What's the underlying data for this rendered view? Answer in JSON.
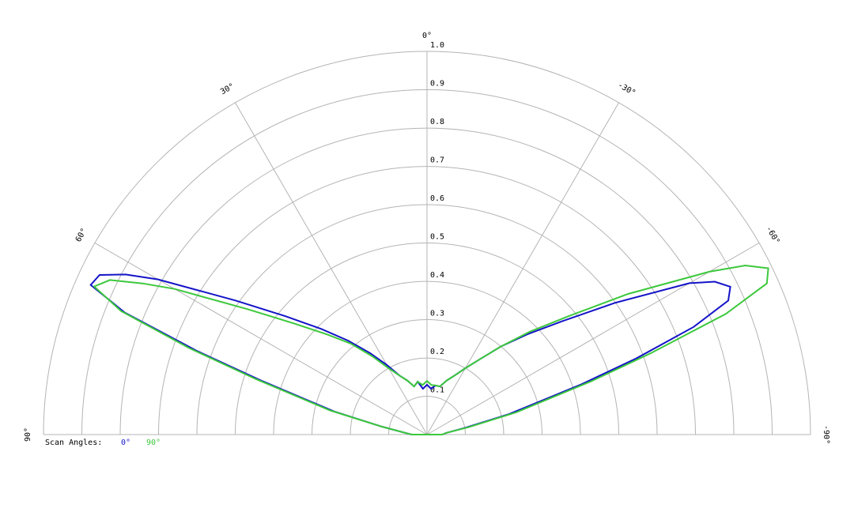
{
  "chart_data": {
    "type": "polar",
    "legend_title": "Scan Angles:",
    "x": [
      -90,
      -85,
      -80,
      -76,
      -72,
      -70,
      -68,
      -66,
      -64,
      -62,
      -60,
      -55,
      -50,
      -45,
      -40,
      -35,
      -30,
      -25,
      -20,
      -15,
      -10,
      -5,
      0,
      5,
      10,
      15,
      20,
      25,
      30,
      35,
      40,
      45,
      50,
      55,
      60,
      62,
      64,
      66,
      68,
      70,
      72,
      76,
      80,
      85,
      90
    ],
    "series": [
      {
        "name": "0°",
        "color": "#1414c8",
        "values": [
          0.04,
          0.05,
          0.1,
          0.22,
          0.42,
          0.58,
          0.75,
          0.86,
          0.88,
          0.85,
          0.79,
          0.6,
          0.46,
          0.37,
          0.3,
          0.24,
          0.2,
          0.17,
          0.15,
          0.13,
          0.13,
          0.12,
          0.13,
          0.12,
          0.14,
          0.13,
          0.15,
          0.17,
          0.21,
          0.26,
          0.32,
          0.39,
          0.48,
          0.61,
          0.81,
          0.89,
          0.95,
          0.96,
          0.85,
          0.64,
          0.45,
          0.25,
          0.12,
          0.06,
          0.04
        ]
      },
      {
        "name": "90°",
        "color": "#3cc83c",
        "values": [
          0.04,
          0.05,
          0.11,
          0.24,
          0.45,
          0.62,
          0.84,
          0.97,
          0.99,
          0.94,
          0.85,
          0.64,
          0.48,
          0.38,
          0.3,
          0.24,
          0.2,
          0.17,
          0.15,
          0.13,
          0.13,
          0.13,
          0.14,
          0.13,
          0.14,
          0.13,
          0.15,
          0.17,
          0.2,
          0.25,
          0.31,
          0.37,
          0.45,
          0.57,
          0.76,
          0.84,
          0.92,
          0.95,
          0.86,
          0.66,
          0.47,
          0.26,
          0.12,
          0.06,
          0.04
        ]
      }
    ],
    "rlim": [
      0,
      1
    ],
    "rticks": [
      0.1,
      0.2,
      0.3,
      0.4,
      0.5,
      0.6,
      0.7,
      0.8,
      0.9,
      {
        "value": 1,
        "label": "1.0"
      }
    ],
    "thetaticks": [
      {
        "value": 90,
        "label": "90°"
      },
      {
        "value": 60,
        "label": "60°"
      },
      {
        "value": 30,
        "label": "30°"
      },
      {
        "value": 0,
        "label": "0°"
      },
      {
        "value": -30,
        "label": "-30°"
      },
      {
        "value": -60,
        "label": "-60°"
      },
      {
        "value": -90,
        "label": "-90°"
      }
    ]
  }
}
